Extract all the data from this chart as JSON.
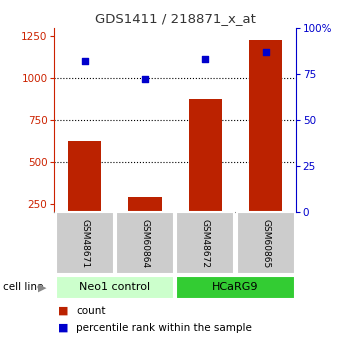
{
  "title": "GDS1411 / 218871_x_at",
  "samples": [
    "GSM48671",
    "GSM60864",
    "GSM48672",
    "GSM60865"
  ],
  "counts": [
    625,
    290,
    875,
    1225
  ],
  "percentiles": [
    82,
    72,
    83,
    87
  ],
  "groups": [
    {
      "label": "Neo1 control",
      "indices": [
        0,
        1
      ],
      "color": "#ccffcc"
    },
    {
      "label": "HCaRG9",
      "indices": [
        2,
        3
      ],
      "color": "#33cc33"
    }
  ],
  "ylim_left": [
    200,
    1300
  ],
  "ylim_right": [
    0,
    100
  ],
  "yticks_left": [
    250,
    500,
    750,
    1000,
    1250
  ],
  "yticks_right": [
    0,
    25,
    50,
    75,
    100
  ],
  "bar_color": "#bb2200",
  "dot_color": "#0000cc",
  "grid_lines": [
    500,
    750,
    1000
  ],
  "left_axis_color": "#cc2200",
  "right_axis_color": "#0000cc",
  "sample_box_color": "#cccccc",
  "bar_width": 0.55,
  "background_color": "#ffffff"
}
